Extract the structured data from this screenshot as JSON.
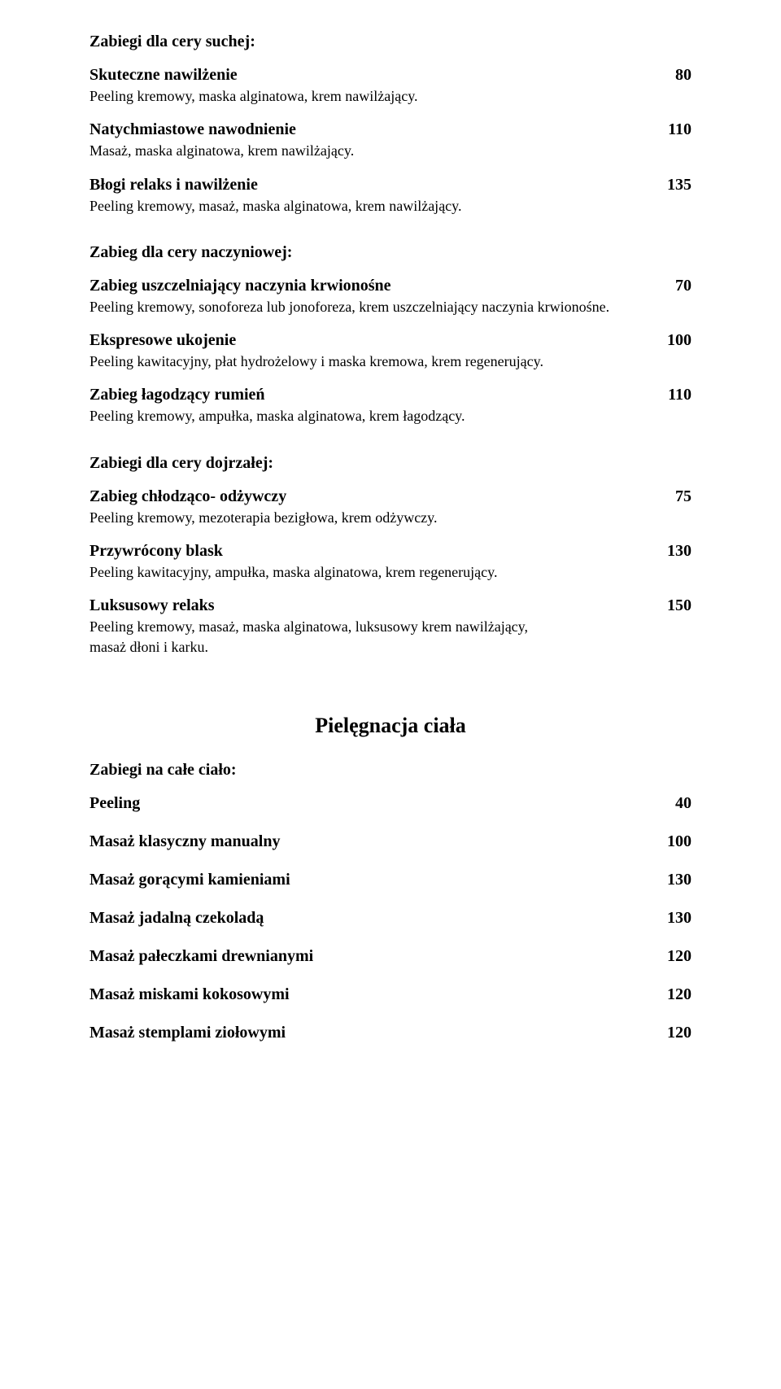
{
  "sections": [
    {
      "header": "Zabiegi dla cery suchej:",
      "items": [
        {
          "title": "Skuteczne nawilżenie",
          "price": "80",
          "desc": "Peeling kremowy, maska alginatowa, krem nawilżający."
        },
        {
          "title": "Natychmiastowe nawodnienie",
          "price": "110",
          "desc": "Masaż, maska alginatowa, krem nawilżający."
        },
        {
          "title": "Błogi relaks i nawilżenie",
          "price": "135",
          "desc": "Peeling kremowy, masaż, maska alginatowa, krem nawilżający."
        }
      ]
    },
    {
      "header": "Zabieg dla cery naczyniowej:",
      "items": [
        {
          "title": "Zabieg uszczelniający naczynia krwionośne",
          "price": "70",
          "desc": "Peeling kremowy, sonoforeza lub jonoforeza, krem uszczelniający naczynia krwionośne."
        },
        {
          "title": "Ekspresowe ukojenie",
          "price": "100",
          "desc": "Peeling kawitacyjny, płat hydrożelowy i maska kremowa, krem regenerujący."
        },
        {
          "title": "Zabieg łagodzący rumień",
          "price": "110",
          "desc": "Peeling kremowy, ampułka, maska alginatowa, krem łagodzący."
        }
      ]
    },
    {
      "header": "Zabiegi dla cery dojrzałej:",
      "items": [
        {
          "title": "Zabieg chłodząco- odżywczy",
          "price": "75",
          "desc": "Peeling kremowy, mezoterapia bezigłowa, krem odżywczy."
        },
        {
          "title": "Przywrócony blask",
          "price": "130",
          "desc": "Peeling kawitacyjny, ampułka, maska alginatowa, krem regenerujący."
        },
        {
          "title": "Luksusowy relaks",
          "price": "150",
          "desc": "Peeling kremowy, masaż, maska alginatowa, luksusowy krem nawilżający,\nmasaż dłoni i karku."
        }
      ]
    }
  ],
  "body_heading": "Pielęgnacja ciała",
  "body_section_header": "Zabiegi na całe ciało:",
  "body_items": [
    {
      "title": "Peeling",
      "price": "40"
    },
    {
      "title": "Masaż klasyczny manualny",
      "price": "100"
    },
    {
      "title": "Masaż gorącymi kamieniami",
      "price": "130"
    },
    {
      "title": "Masaż jadalną czekoladą",
      "price": "130"
    },
    {
      "title": "Masaż pałeczkami drewnianymi",
      "price": "120"
    },
    {
      "title": "Masaż miskami kokosowymi",
      "price": "120"
    },
    {
      "title": "Masaż stemplami ziołowymi",
      "price": "120"
    }
  ]
}
